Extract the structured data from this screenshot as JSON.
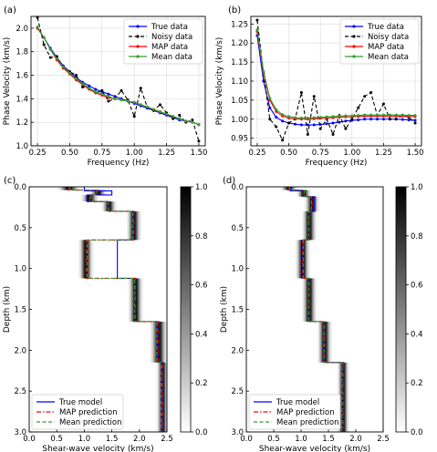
{
  "chart_data": [
    {
      "type": "line",
      "panel": "(a)",
      "xlabel": "Frequency (Hz)",
      "ylabel": "Phase Velocity (km/s)",
      "xlim": [
        0.2,
        1.55
      ],
      "ylim": [
        1.0,
        2.1
      ],
      "xticks": [
        "0.25",
        "0.50",
        "0.75",
        "1.00",
        "1.25",
        "1.50"
      ],
      "yticks": [
        "1.0",
        "1.2",
        "1.4",
        "1.6",
        "1.8",
        "2.0"
      ],
      "grid": true,
      "legend_position": "top-right",
      "series": [
        {
          "name": "True data",
          "color": "#0000ff",
          "style": "solid",
          "marker": "dot",
          "x": [
            0.25,
            0.3,
            0.35,
            0.4,
            0.45,
            0.5,
            0.55,
            0.6,
            0.65,
            0.7,
            0.75,
            0.8,
            0.85,
            0.9,
            0.95,
            1.0,
            1.05,
            1.1,
            1.15,
            1.2,
            1.25,
            1.3,
            1.35,
            1.4,
            1.45,
            1.5
          ],
          "y": [
            2.0,
            1.92,
            1.83,
            1.75,
            1.68,
            1.63,
            1.58,
            1.54,
            1.51,
            1.48,
            1.46,
            1.44,
            1.42,
            1.4,
            1.38,
            1.36,
            1.34,
            1.32,
            1.3,
            1.28,
            1.26,
            1.24,
            1.22,
            1.21,
            1.2,
            1.18
          ]
        },
        {
          "name": "Noisy data",
          "color": "#000000",
          "style": "dashed",
          "marker": "dot",
          "x": [
            0.25,
            0.3,
            0.35,
            0.4,
            0.45,
            0.5,
            0.55,
            0.6,
            0.65,
            0.7,
            0.75,
            0.8,
            0.85,
            0.9,
            0.95,
            1.0,
            1.05,
            1.1,
            1.15,
            1.2,
            1.25,
            1.3,
            1.35,
            1.4,
            1.45,
            1.5
          ],
          "y": [
            2.09,
            1.86,
            1.75,
            1.76,
            1.66,
            1.63,
            1.6,
            1.5,
            1.49,
            1.45,
            1.47,
            1.38,
            1.4,
            1.47,
            1.39,
            1.25,
            1.49,
            1.33,
            1.3,
            1.35,
            1.28,
            1.23,
            1.26,
            1.2,
            1.22,
            1.04
          ]
        },
        {
          "name": "MAP data",
          "color": "#ff0000",
          "style": "solid",
          "marker": "dot",
          "x": [
            0.25,
            0.3,
            0.35,
            0.4,
            0.45,
            0.5,
            0.55,
            0.6,
            0.65,
            0.7,
            0.75,
            0.8,
            0.85,
            0.9,
            0.95,
            1.0,
            1.05,
            1.1,
            1.15,
            1.2,
            1.25,
            1.3,
            1.35,
            1.4,
            1.45,
            1.5
          ],
          "y": [
            2.0,
            1.92,
            1.82,
            1.73,
            1.66,
            1.61,
            1.56,
            1.52,
            1.48,
            1.45,
            1.43,
            1.41,
            1.4,
            1.39,
            1.38,
            1.37,
            1.35,
            1.33,
            1.31,
            1.29,
            1.27,
            1.25,
            1.23,
            1.21,
            1.2,
            1.18
          ]
        },
        {
          "name": "Mean data",
          "color": "#2ca02c",
          "style": "solid",
          "marker": "dot",
          "x": [
            0.25,
            0.3,
            0.35,
            0.4,
            0.45,
            0.5,
            0.55,
            0.6,
            0.65,
            0.7,
            0.75,
            0.8,
            0.85,
            0.9,
            0.95,
            1.0,
            1.05,
            1.1,
            1.15,
            1.2,
            1.25,
            1.3,
            1.35,
            1.4,
            1.45,
            1.5
          ],
          "y": [
            2.01,
            1.92,
            1.82,
            1.74,
            1.67,
            1.62,
            1.57,
            1.53,
            1.49,
            1.46,
            1.44,
            1.42,
            1.4,
            1.39,
            1.38,
            1.37,
            1.35,
            1.33,
            1.31,
            1.29,
            1.27,
            1.25,
            1.23,
            1.21,
            1.2,
            1.18
          ]
        }
      ]
    },
    {
      "type": "line",
      "panel": "(b)",
      "xlabel": "Frequency (Hz)",
      "ylabel": "Phase Velocity (km/s)",
      "xlim": [
        0.2,
        1.55
      ],
      "ylim": [
        0.93,
        1.27
      ],
      "xticks": [
        "0.25",
        "0.50",
        "0.75",
        "1.00",
        "1.25",
        "1.50"
      ],
      "yticks": [
        "0.95",
        "1.00",
        "1.05",
        "1.10",
        "1.15",
        "1.20",
        "1.25"
      ],
      "grid": true,
      "legend_position": "top-right",
      "series": [
        {
          "name": "True data",
          "color": "#0000ff",
          "style": "solid",
          "marker": "dot",
          "x": [
            0.25,
            0.3,
            0.35,
            0.4,
            0.45,
            0.5,
            0.55,
            0.6,
            0.65,
            0.7,
            0.75,
            0.8,
            0.85,
            0.9,
            0.95,
            1.0,
            1.05,
            1.1,
            1.15,
            1.2,
            1.25,
            1.3,
            1.35,
            1.4,
            1.45,
            1.5
          ],
          "y": [
            1.22,
            1.1,
            1.03,
            1.005,
            0.995,
            0.99,
            0.987,
            0.985,
            0.985,
            0.985,
            0.986,
            0.988,
            0.99,
            0.992,
            0.995,
            0.997,
            0.998,
            1.0,
            1.0,
            1.0,
            1.0,
            1.0,
            1.0,
            0.999,
            0.998,
            0.997
          ]
        },
        {
          "name": "Noisy data",
          "color": "#000000",
          "style": "dashed",
          "marker": "dot",
          "x": [
            0.25,
            0.3,
            0.35,
            0.4,
            0.45,
            0.5,
            0.55,
            0.6,
            0.65,
            0.7,
            0.75,
            0.8,
            0.85,
            0.9,
            0.95,
            1.0,
            1.05,
            1.1,
            1.15,
            1.2,
            1.25,
            1.3,
            1.35,
            1.4,
            1.45,
            1.5
          ],
          "y": [
            1.26,
            1.12,
            1.0,
            0.98,
            0.945,
            0.99,
            1.0,
            1.07,
            0.96,
            1.06,
            0.975,
            1.0,
            0.96,
            1.01,
            0.975,
            1.0,
            1.03,
            1.06,
            1.07,
            1.01,
            1.04,
            1.0,
            1.0,
            1.01,
            1.005,
            0.99
          ]
        },
        {
          "name": "MAP data",
          "color": "#ff0000",
          "style": "solid",
          "marker": "dot",
          "x": [
            0.25,
            0.3,
            0.35,
            0.4,
            0.45,
            0.5,
            0.55,
            0.6,
            0.65,
            0.7,
            0.75,
            0.8,
            0.85,
            0.9,
            0.95,
            1.0,
            1.05,
            1.1,
            1.15,
            1.2,
            1.25,
            1.3,
            1.35,
            1.4,
            1.45,
            1.5
          ],
          "y": [
            1.23,
            1.12,
            1.05,
            1.02,
            1.008,
            1.003,
            1.001,
            1.0,
            1.0,
            1.001,
            1.002,
            1.003,
            1.004,
            1.005,
            1.006,
            1.006,
            1.007,
            1.008,
            1.008,
            1.008,
            1.008,
            1.008,
            1.008,
            1.008,
            1.007,
            1.007
          ]
        },
        {
          "name": "Mean data",
          "color": "#2ca02c",
          "style": "solid",
          "marker": "dot",
          "x": [
            0.25,
            0.3,
            0.35,
            0.4,
            0.45,
            0.5,
            0.55,
            0.6,
            0.65,
            0.7,
            0.75,
            0.8,
            0.85,
            0.9,
            0.95,
            1.0,
            1.05,
            1.1,
            1.15,
            1.2,
            1.25,
            1.3,
            1.35,
            1.4,
            1.45,
            1.5
          ],
          "y": [
            1.235,
            1.125,
            1.055,
            1.025,
            1.012,
            1.007,
            1.004,
            1.003,
            1.003,
            1.004,
            1.005,
            1.006,
            1.007,
            1.008,
            1.009,
            1.009,
            1.01,
            1.011,
            1.011,
            1.011,
            1.011,
            1.011,
            1.011,
            1.011,
            1.01,
            1.01
          ]
        }
      ]
    },
    {
      "type": "heatmap",
      "panel": "(c)",
      "xlabel": "Shear-wave velocity (km/s)",
      "ylabel": "Depth (km)",
      "xlim": [
        0.0,
        2.5
      ],
      "ylim": [
        3.0,
        0.0
      ],
      "xticks": [
        "0.0",
        "0.5",
        "1.0",
        "1.5",
        "2.0",
        "2.5"
      ],
      "yticks": [
        "0.0",
        "0.5",
        "1.0",
        "1.5",
        "2.0",
        "2.5",
        "3.0"
      ],
      "colorbar": {
        "min": 0.0,
        "max": 1.0,
        "ticks": [
          "0.0",
          "0.2",
          "0.4",
          "0.6",
          "0.8",
          "1.0"
        ]
      },
      "legend_position": "bottom-left",
      "bands": [
        {
          "top": 0.0,
          "bottom": 0.04,
          "v": 0.72,
          "s": 0.08
        },
        {
          "top": 0.04,
          "bottom": 0.1,
          "v": 1.25,
          "s": 0.06
        },
        {
          "top": 0.1,
          "bottom": 0.18,
          "v": 1.1,
          "s": 0.06
        },
        {
          "top": 0.18,
          "bottom": 0.3,
          "v": 1.45,
          "s": 0.05
        },
        {
          "top": 0.3,
          "bottom": 0.65,
          "v": 1.9,
          "s": 0.05
        },
        {
          "top": 0.65,
          "bottom": 1.12,
          "v": 1.03,
          "s": 0.05
        },
        {
          "top": 1.12,
          "bottom": 1.65,
          "v": 1.93,
          "s": 0.05
        },
        {
          "top": 1.65,
          "bottom": 2.15,
          "v": 2.35,
          "s": 0.06
        },
        {
          "top": 2.15,
          "bottom": 3.0,
          "v": 2.42,
          "s": 0.04
        }
      ],
      "series": [
        {
          "name": "True model",
          "color": "#0000ff",
          "style": "solid",
          "depth": [
            0.0,
            0.05,
            0.05,
            0.1,
            0.1,
            0.18,
            0.18,
            0.3,
            0.3,
            0.65,
            0.65,
            1.12,
            1.12,
            1.65,
            1.65,
            2.15,
            2.15,
            3.0
          ],
          "velocity": [
            1.0,
            1.0,
            1.5,
            1.5,
            1.05,
            1.05,
            1.45,
            1.45,
            1.9,
            1.9,
            1.6,
            1.6,
            1.93,
            1.93,
            2.35,
            2.35,
            2.42,
            2.42
          ]
        },
        {
          "name": "MAP prediction",
          "color": "#ff0000",
          "style": "dashdot",
          "depth": [
            0.0,
            0.04,
            0.04,
            0.1,
            0.1,
            0.18,
            0.18,
            0.3,
            0.3,
            0.65,
            0.65,
            1.12,
            1.12,
            1.65,
            1.65,
            2.15,
            2.15,
            3.0
          ],
          "velocity": [
            0.72,
            0.72,
            1.25,
            1.25,
            1.1,
            1.1,
            1.45,
            1.45,
            1.9,
            1.9,
            1.03,
            1.03,
            1.93,
            1.93,
            2.35,
            2.35,
            2.42,
            2.42
          ]
        },
        {
          "name": "Mean prediction",
          "color": "#2ca02c",
          "style": "dashed",
          "depth": [
            0.0,
            0.04,
            0.04,
            0.1,
            0.1,
            0.18,
            0.18,
            0.3,
            0.3,
            0.65,
            0.65,
            1.12,
            1.12,
            1.65,
            1.65,
            2.15,
            2.15,
            3.0
          ],
          "velocity": [
            0.74,
            0.74,
            1.23,
            1.23,
            1.12,
            1.12,
            1.44,
            1.44,
            1.88,
            1.88,
            1.05,
            1.05,
            1.91,
            1.91,
            2.32,
            2.32,
            2.4,
            2.4
          ]
        }
      ]
    },
    {
      "type": "heatmap",
      "panel": "(d)",
      "xlabel": "Shear-wave velocity (km/s)",
      "ylabel": "Depth (km)",
      "xlim": [
        0.0,
        2.5
      ],
      "ylim": [
        3.0,
        0.0
      ],
      "xticks": [
        "0.0",
        "0.5",
        "1.0",
        "1.5",
        "2.0",
        "2.5"
      ],
      "yticks": [
        "0.0",
        "0.5",
        "1.0",
        "1.5",
        "2.0",
        "2.5",
        "3.0"
      ],
      "colorbar": {
        "min": 0.0,
        "max": 1.0,
        "ticks": [
          "0.0",
          "0.2",
          "0.4",
          "0.6",
          "0.8",
          "1.0"
        ]
      },
      "legend_position": "bottom-left",
      "bands": [
        {
          "top": 0.0,
          "bottom": 0.04,
          "v": 0.78,
          "s": 0.06
        },
        {
          "top": 0.04,
          "bottom": 0.12,
          "v": 1.05,
          "s": 0.05
        },
        {
          "top": 0.12,
          "bottom": 0.3,
          "v": 1.2,
          "s": 0.05
        },
        {
          "top": 0.3,
          "bottom": 0.65,
          "v": 1.15,
          "s": 0.05
        },
        {
          "top": 0.65,
          "bottom": 1.12,
          "v": 1.03,
          "s": 0.05
        },
        {
          "top": 1.12,
          "bottom": 1.65,
          "v": 1.15,
          "s": 0.05
        },
        {
          "top": 1.65,
          "bottom": 2.15,
          "v": 1.43,
          "s": 0.05
        },
        {
          "top": 2.15,
          "bottom": 3.0,
          "v": 1.77,
          "s": 0.04
        }
      ],
      "series": [
        {
          "name": "True model",
          "color": "#0000ff",
          "style": "solid",
          "depth": [
            0.0,
            0.05,
            0.05,
            0.12,
            0.12,
            0.3,
            0.3,
            0.65,
            0.65,
            1.12,
            1.12,
            1.65,
            1.65,
            2.15,
            2.15,
            3.0
          ],
          "velocity": [
            0.8,
            0.8,
            1.05,
            1.05,
            1.25,
            1.25,
            1.15,
            1.15,
            1.03,
            1.03,
            1.15,
            1.15,
            1.43,
            1.43,
            1.77,
            1.77
          ]
        },
        {
          "name": "MAP prediction",
          "color": "#ff0000",
          "style": "dashdot",
          "depth": [
            0.0,
            0.04,
            0.04,
            0.12,
            0.12,
            0.3,
            0.3,
            0.65,
            0.65,
            1.12,
            1.12,
            1.65,
            1.65,
            2.15,
            2.15,
            3.0
          ],
          "velocity": [
            0.78,
            0.78,
            1.05,
            1.05,
            1.2,
            1.2,
            1.15,
            1.15,
            1.03,
            1.03,
            1.15,
            1.15,
            1.43,
            1.43,
            1.77,
            1.77
          ]
        },
        {
          "name": "Mean prediction",
          "color": "#2ca02c",
          "style": "dashed",
          "depth": [
            0.0,
            0.04,
            0.04,
            0.12,
            0.12,
            0.3,
            0.3,
            0.65,
            0.65,
            1.12,
            1.12,
            1.65,
            1.65,
            2.15,
            2.15,
            3.0
          ],
          "velocity": [
            0.79,
            0.79,
            1.06,
            1.06,
            1.19,
            1.19,
            1.14,
            1.14,
            1.04,
            1.04,
            1.14,
            1.14,
            1.42,
            1.42,
            1.75,
            1.75
          ]
        }
      ]
    }
  ]
}
